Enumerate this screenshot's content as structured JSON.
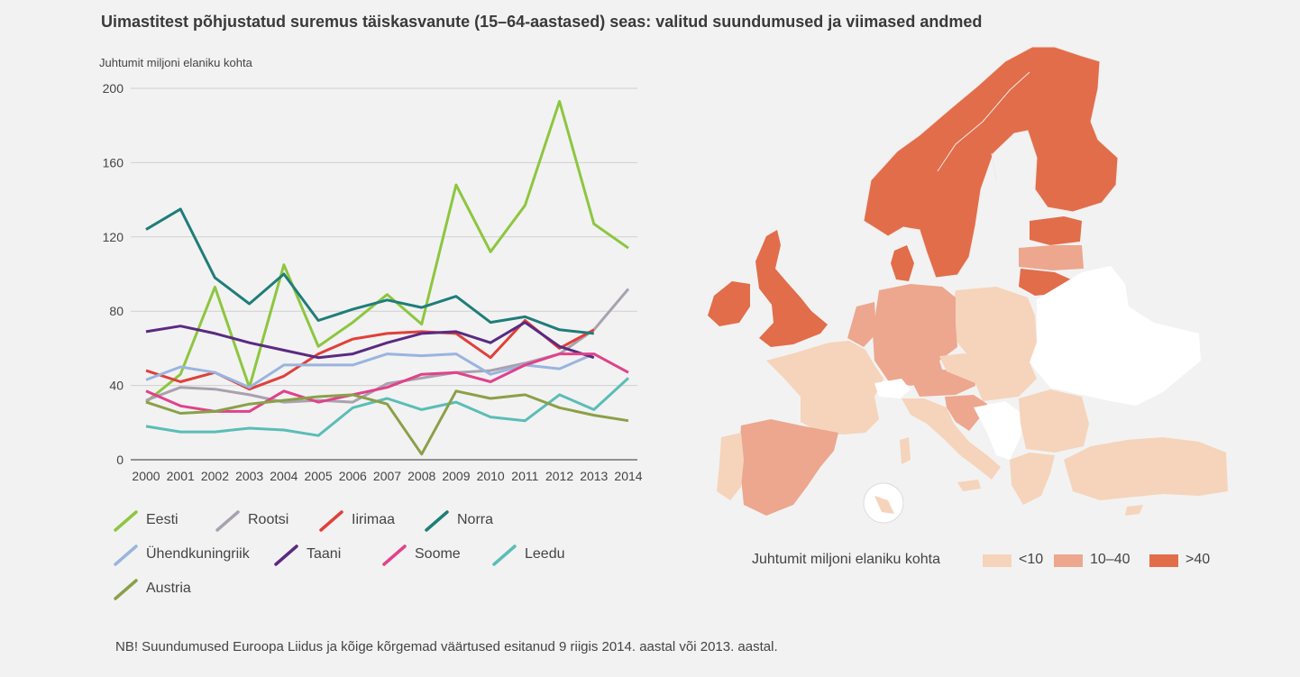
{
  "title": "Uimastitest põhjustatud suremus täiskasvanute (15–64-aastased) seas: valitud suundumused ja viimased andmed",
  "note": "NB! Suundumused Euroopa Liidus ja kõige kõrgemad väärtused esitanud 9 riigis 2014. aastal või 2013. aastal.",
  "chart_data": {
    "type": "line",
    "ylabel": "Juhtumit miljoni elaniku kohta",
    "ylim": [
      0,
      200
    ],
    "yticks": [
      0,
      40,
      80,
      120,
      160,
      200
    ],
    "x": [
      "2000",
      "2001",
      "2002",
      "2003",
      "2004",
      "2005",
      "2006",
      "2007",
      "2008",
      "2009",
      "2010",
      "2011",
      "2012",
      "2013",
      "2014"
    ],
    "grid": true,
    "legend_position": "bottom",
    "series": [
      {
        "name": "Eesti",
        "color": "#8dc63f",
        "values": [
          31,
          46,
          93,
          39,
          105,
          61,
          74,
          89,
          73,
          148,
          112,
          137,
          193,
          127,
          114
        ]
      },
      {
        "name": "Rootsi",
        "color": "#a9a1ae",
        "values": [
          32,
          39,
          38,
          35,
          31,
          32,
          31,
          41,
          44,
          47,
          48,
          52,
          57,
          70,
          92
        ]
      },
      {
        "name": "Iirimaa",
        "color": "#e0403a",
        "values": [
          48,
          42,
          47,
          38,
          45,
          57,
          65,
          68,
          69,
          68,
          55,
          75,
          60,
          70,
          null
        ]
      },
      {
        "name": "Norra",
        "color": "#1f7d79",
        "values": [
          124,
          135,
          98,
          84,
          100,
          75,
          81,
          86,
          82,
          88,
          74,
          77,
          70,
          68,
          null
        ]
      },
      {
        "name": "Ühendkuningriik",
        "color": "#9ab4df",
        "values": [
          43,
          50,
          47,
          39,
          51,
          51,
          51,
          57,
          56,
          57,
          46,
          51,
          49,
          57,
          null
        ]
      },
      {
        "name": "Taani",
        "color": "#5a2a82",
        "values": [
          69,
          72,
          68,
          63,
          59,
          55,
          57,
          63,
          68,
          69,
          63,
          74,
          61,
          55,
          null
        ]
      },
      {
        "name": "Soome",
        "color": "#e0428b",
        "values": [
          37,
          29,
          26,
          26,
          37,
          31,
          35,
          39,
          46,
          47,
          42,
          51,
          57,
          57,
          47
        ]
      },
      {
        "name": "Leedu",
        "color": "#5bbdb6",
        "values": [
          18,
          15,
          15,
          17,
          16,
          13,
          28,
          33,
          27,
          31,
          23,
          21,
          35,
          27,
          44
        ]
      },
      {
        "name": "Austria",
        "color": "#8aa048",
        "values": [
          31,
          25,
          26,
          30,
          32,
          34,
          35,
          30,
          3,
          37,
          33,
          35,
          28,
          24,
          21
        ]
      }
    ]
  },
  "map": {
    "legend_title": "Juhtumit miljoni elaniku kohta",
    "categories": [
      {
        "label": "<10",
        "color": "#f5d4bb"
      },
      {
        "label": "10–40",
        "color": "#eca78e"
      },
      {
        "label": ">40",
        "color": "#e26d4a"
      }
    ],
    "no_data_color": "#ffffff"
  }
}
